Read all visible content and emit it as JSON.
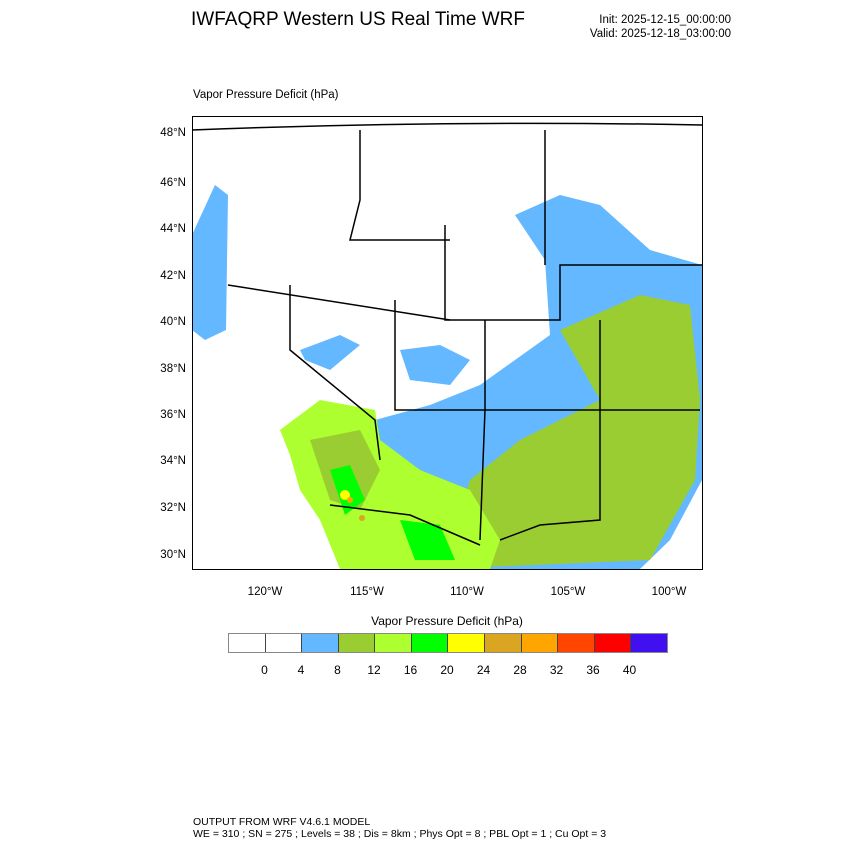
{
  "header": {
    "title": "IWFAQRP Western US Real Time WRF",
    "init": "Init: 2025-12-15_00:00:00",
    "valid": "Valid: 2025-12-18_03:00:00"
  },
  "map": {
    "subtitle": "Vapor Pressure Deficit   (hPa)",
    "lat_labels": [
      "48°N",
      "46°N",
      "44°N",
      "42°N",
      "40°N",
      "38°N",
      "36°N",
      "34°N",
      "32°N",
      "30°N"
    ],
    "lon_labels": [
      "120°W",
      "115°W",
      "110°W",
      "105°W",
      "100°W"
    ]
  },
  "colorbar": {
    "title": "Vapor Pressure Deficit  (hPa)",
    "labels": [
      "0",
      "4",
      "8",
      "12",
      "16",
      "20",
      "24",
      "28",
      "32",
      "36",
      "40"
    ],
    "colors": [
      "#ffffff",
      "#ffffff",
      "#63b8ff",
      "#9acd32",
      "#adff2f",
      "#00ff00",
      "#ffff00",
      "#daa520",
      "#ffa500",
      "#ff4500",
      "#ff0000",
      "#4010f0"
    ]
  },
  "footer": {
    "line1": "OUTPUT FROM WRF V4.6.1 MODEL",
    "line2": "WE = 310 ; SN = 275 ; Levels = 38 ; Dis = 8km ; Phys Opt = 8 ; PBL Opt = 1 ; Cu Opt = 3"
  }
}
